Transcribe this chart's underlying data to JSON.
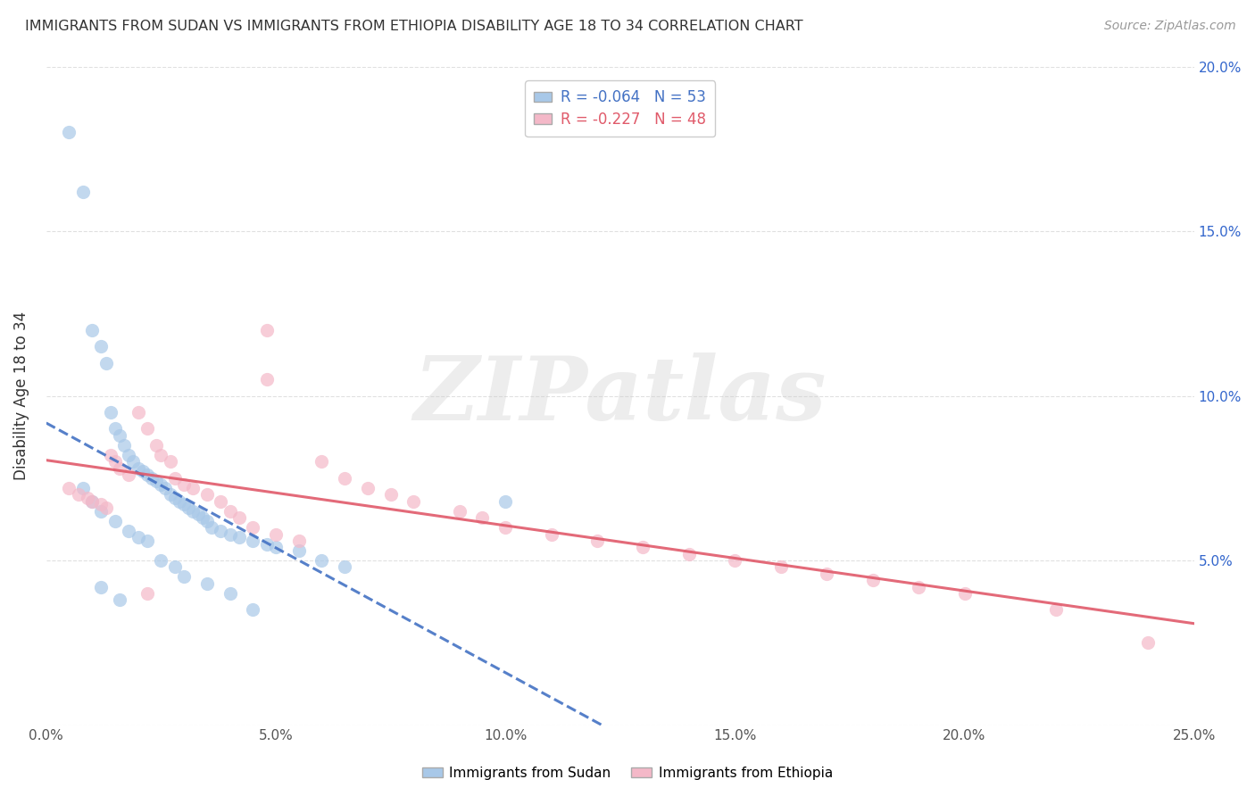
{
  "title": "IMMIGRANTS FROM SUDAN VS IMMIGRANTS FROM ETHIOPIA DISABILITY AGE 18 TO 34 CORRELATION CHART",
  "source": "Source: ZipAtlas.com",
  "ylabel": "Disability Age 18 to 34",
  "legend_label1": "Immigrants from Sudan",
  "legend_label2": "Immigrants from Ethiopia",
  "R1": -0.064,
  "N1": 53,
  "R2": -0.227,
  "N2": 48,
  "color1": "#a8c8e8",
  "color2": "#f4b8c8",
  "line_color1": "#4472c4",
  "line_color2": "#e05a6a",
  "xlim": [
    0.0,
    0.25
  ],
  "ylim": [
    0.0,
    0.2
  ],
  "x_tick_vals": [
    0.0,
    0.05,
    0.1,
    0.15,
    0.2,
    0.25
  ],
  "x_tick_labels": [
    "0.0%",
    "5.0%",
    "10.0%",
    "15.0%",
    "20.0%",
    "25.0%"
  ],
  "y_tick_vals": [
    0.0,
    0.05,
    0.1,
    0.15,
    0.2
  ],
  "y_tick_labels_left": [
    "",
    "",
    "",
    "",
    ""
  ],
  "y_tick_labels_right": [
    "",
    "5.0%",
    "10.0%",
    "15.0%",
    "20.0%"
  ],
  "watermark_text": "ZIPatlas",
  "background_color": "#ffffff",
  "grid_color": "#dddddd",
  "sudan_x": [
    0.005,
    0.008,
    0.01,
    0.012,
    0.013,
    0.014,
    0.015,
    0.016,
    0.017,
    0.018,
    0.019,
    0.02,
    0.021,
    0.022,
    0.023,
    0.024,
    0.025,
    0.026,
    0.027,
    0.028,
    0.029,
    0.03,
    0.031,
    0.032,
    0.033,
    0.034,
    0.035,
    0.036,
    0.038,
    0.04,
    0.042,
    0.045,
    0.048,
    0.05,
    0.055,
    0.06,
    0.065,
    0.008,
    0.01,
    0.012,
    0.015,
    0.018,
    0.02,
    0.022,
    0.025,
    0.028,
    0.03,
    0.035,
    0.04,
    0.045,
    0.1,
    0.012,
    0.016
  ],
  "sudan_y": [
    0.18,
    0.162,
    0.12,
    0.115,
    0.11,
    0.095,
    0.09,
    0.088,
    0.085,
    0.082,
    0.08,
    0.078,
    0.077,
    0.076,
    0.075,
    0.074,
    0.073,
    0.072,
    0.07,
    0.069,
    0.068,
    0.067,
    0.066,
    0.065,
    0.064,
    0.063,
    0.062,
    0.06,
    0.059,
    0.058,
    0.057,
    0.056,
    0.055,
    0.054,
    0.053,
    0.05,
    0.048,
    0.072,
    0.068,
    0.065,
    0.062,
    0.059,
    0.057,
    0.056,
    0.05,
    0.048,
    0.045,
    0.043,
    0.04,
    0.035,
    0.068,
    0.042,
    0.038
  ],
  "ethiopia_x": [
    0.005,
    0.007,
    0.009,
    0.01,
    0.012,
    0.013,
    0.014,
    0.015,
    0.016,
    0.018,
    0.02,
    0.022,
    0.024,
    0.025,
    0.027,
    0.028,
    0.03,
    0.032,
    0.035,
    0.038,
    0.04,
    0.042,
    0.045,
    0.048,
    0.05,
    0.055,
    0.06,
    0.065,
    0.07,
    0.075,
    0.08,
    0.09,
    0.095,
    0.1,
    0.11,
    0.12,
    0.13,
    0.14,
    0.15,
    0.16,
    0.17,
    0.18,
    0.19,
    0.2,
    0.22,
    0.24,
    0.048,
    0.022
  ],
  "ethiopia_y": [
    0.072,
    0.07,
    0.069,
    0.068,
    0.067,
    0.066,
    0.082,
    0.08,
    0.078,
    0.076,
    0.095,
    0.09,
    0.085,
    0.082,
    0.08,
    0.075,
    0.073,
    0.072,
    0.07,
    0.068,
    0.065,
    0.063,
    0.06,
    0.12,
    0.058,
    0.056,
    0.08,
    0.075,
    0.072,
    0.07,
    0.068,
    0.065,
    0.063,
    0.06,
    0.058,
    0.056,
    0.054,
    0.052,
    0.05,
    0.048,
    0.046,
    0.044,
    0.042,
    0.04,
    0.035,
    0.025,
    0.105,
    0.04
  ]
}
